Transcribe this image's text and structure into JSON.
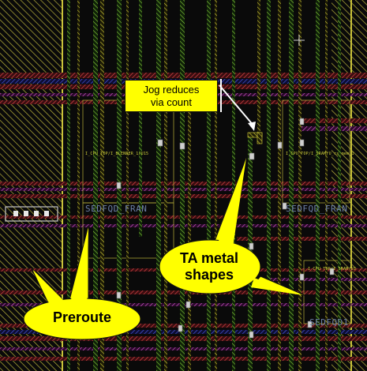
{
  "callout": {
    "line1": "Jog reduces",
    "line2": "via count"
  },
  "bubbles": {
    "ta_metal_line1": "TA metal",
    "ta_metal_line2": "shapes",
    "preroute": "Preroute"
  },
  "labels": {
    "inst_left": "I_CPU_TOP/I_BLENDER_1/U15",
    "inst_right": "I_CPU_TOP/I_SRAM/U_rs_mem_1",
    "inst_lower_right": "I_CPU_TOP/I_SRAM/U3",
    "cell_left": "SEDFQD_FRAN",
    "cell_right": "SEDFQD_FRAN",
    "cell_bottom_right": "SEDFQD1"
  },
  "colors": {
    "background": "#0a0a0a",
    "metal_horizontal_red": "#d23a3a",
    "metal_horizontal_blue": "#3a48c8",
    "metal_horizontal_pink": "#d85ad0",
    "metal_vertical_green": "#7ac23a",
    "metal_vertical_yellow": "#d8d23a",
    "preroute_hatch": "#c9c23a",
    "callout_fill": "#ffff00"
  }
}
